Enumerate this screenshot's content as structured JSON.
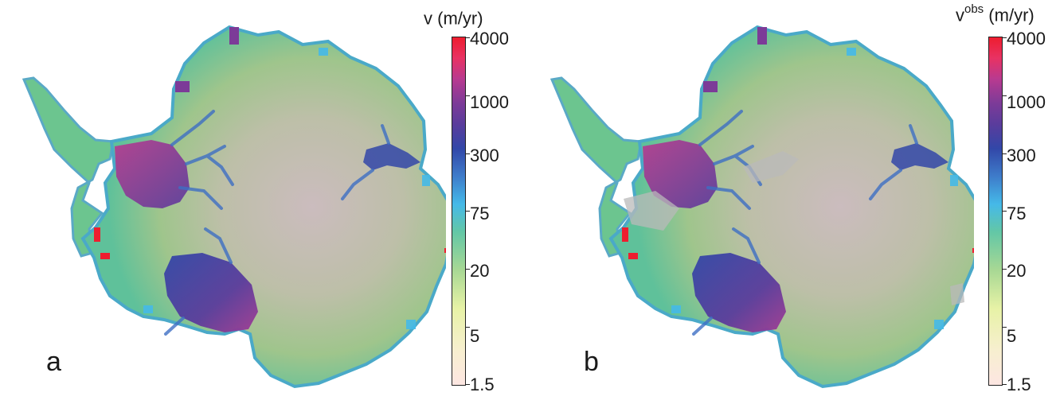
{
  "panels": [
    {
      "letter": "a",
      "colorbar": {
        "title_base": "v",
        "title_sup": "",
        "title_unit": "(m/yr)"
      }
    },
    {
      "letter": "b",
      "colorbar": {
        "title_base": "v",
        "title_sup": "obs",
        "title_unit": " (m/yr)"
      }
    }
  ],
  "colorbar_ticks": [
    "4000",
    "1000",
    "300",
    "75",
    "20",
    "5",
    "1.5"
  ],
  "colorbar_scale": "log",
  "colorbar_range": [
    1.5,
    4000
  ],
  "colors": {
    "low": "#fde6e2",
    "green": "#6cc58f",
    "cyan": "#45b9e8",
    "blue": "#3247a8",
    "purple": "#7c3b98",
    "magenta": "#b83a90",
    "high": "#ee1d2f",
    "interior": "#c9bfbf"
  }
}
